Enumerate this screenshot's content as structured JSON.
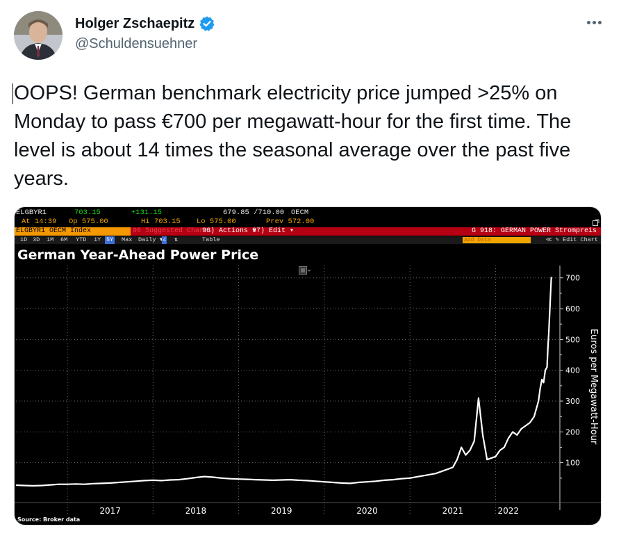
{
  "author": {
    "name": "Holger Zschaepitz",
    "handle": "@Schuldensuehner",
    "verified_color": "#1d9bf0",
    "avatar_icon": "portrait-photo"
  },
  "tweet": {
    "text": "OOPS! German benchmark electricity price jumped >25% on Monday to pass €700 per megawatt-hour for the first time. The level is about 14 times the seasonal average over the past five years."
  },
  "terminal": {
    "ticker": "ELGBYR1",
    "last": "703.15",
    "change": "+131.15",
    "range": "679.85 /710.00",
    "exch": "OECM",
    "time": "At 14:39",
    "open": "Op 575.00",
    "high": "Hi 703.15",
    "low": "Lo 575.00",
    "prev": "Prev  572.00",
    "index_label": "ELGBYR1 OECM Index",
    "ghost_label": "96 Suggested Charts",
    "actions": "96) Actions ▾",
    "edit": "97) Edit ▾",
    "title_right": "G 918: GERMAN POWER Strompreis",
    "periods": [
      "1D",
      "3D",
      "1M",
      "6M",
      "YTD",
      "1Y",
      "5Y",
      "Max"
    ],
    "selected_period": "5Y",
    "frequency": "Daily ▼",
    "table": "Table",
    "add_data": "Add Data",
    "edit_chart": "≪ ✎ Edit Chart",
    "source": "Source: Broker data",
    "accent_amber": "#f0a500",
    "accent_red": "#b40012"
  },
  "chart_data": {
    "type": "line",
    "title": "German Year-Ahead Power Price",
    "xlabel": "",
    "ylabel": "Euros per Megawatt-Hour",
    "ylim": [
      0,
      740
    ],
    "xlim": [
      2016.4,
      2022.75
    ],
    "y_ticks": [
      100,
      200,
      300,
      400,
      500,
      600,
      700
    ],
    "y_tick_labels": [
      "100",
      "200",
      "300",
      "400",
      "500",
      "600",
      "700"
    ],
    "x_tick_labels": [
      "2017",
      "2018",
      "2019",
      "2020",
      "2021",
      "2022"
    ],
    "x_tick_positions": [
      2017.0,
      2018.0,
      2019.0,
      2020.0,
      2021.0,
      2022.0
    ],
    "grid": true,
    "line_color": "#ffffff",
    "series": [
      {
        "x": [
          2016.4,
          2016.5,
          2016.6,
          2016.7,
          2016.8,
          2016.9,
          2017.0,
          2017.1,
          2017.2,
          2017.3,
          2017.4,
          2017.5,
          2017.6,
          2017.7,
          2017.8,
          2017.9,
          2018.0,
          2018.1,
          2018.2,
          2018.3,
          2018.4,
          2018.5,
          2018.6,
          2018.7,
          2018.8,
          2018.9,
          2019.0,
          2019.1,
          2019.2,
          2019.3,
          2019.4,
          2019.5,
          2019.6,
          2019.7,
          2019.8,
          2019.9,
          2020.0,
          2020.1,
          2020.2,
          2020.3,
          2020.4,
          2020.5,
          2020.6,
          2020.7,
          2020.8,
          2020.9,
          2021.0,
          2021.1,
          2021.2,
          2021.3,
          2021.4,
          2021.5,
          2021.55,
          2021.6,
          2021.65,
          2021.7,
          2021.75,
          2021.8,
          2021.85,
          2021.9,
          2022.0,
          2022.05,
          2022.1,
          2022.15,
          2022.2,
          2022.25,
          2022.3,
          2022.35,
          2022.4,
          2022.45,
          2022.5,
          2022.52,
          2022.54,
          2022.56,
          2022.58,
          2022.6,
          2022.61,
          2022.62,
          2022.63,
          2022.64,
          2022.65
        ],
        "values": [
          27,
          26,
          25,
          26,
          28,
          30,
          30,
          31,
          30,
          32,
          33,
          34,
          36,
          38,
          40,
          42,
          43,
          42,
          44,
          45,
          48,
          52,
          55,
          53,
          50,
          48,
          47,
          46,
          45,
          44,
          43,
          44,
          45,
          43,
          42,
          40,
          38,
          36,
          34,
          33,
          36,
          38,
          40,
          43,
          45,
          48,
          50,
          55,
          60,
          65,
          75,
          85,
          110,
          150,
          125,
          140,
          170,
          310,
          190,
          110,
          120,
          140,
          150,
          180,
          200,
          190,
          210,
          220,
          230,
          250,
          300,
          340,
          370,
          360,
          400,
          410,
          470,
          520,
          580,
          640,
          703
        ]
      }
    ]
  }
}
